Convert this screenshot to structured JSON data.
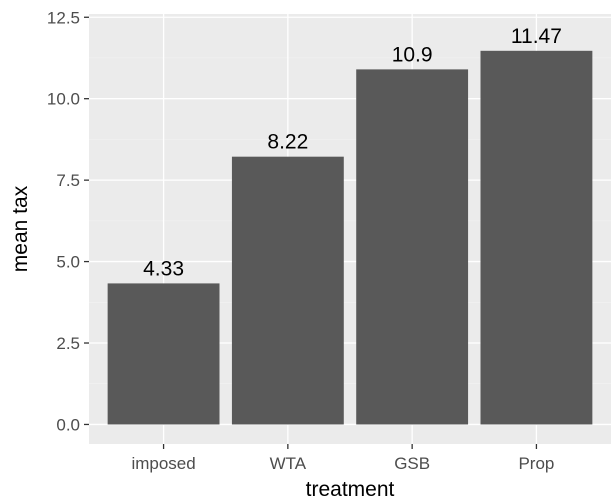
{
  "chart_data": {
    "type": "bar",
    "categories": [
      "imposed",
      "WTA",
      "GSB",
      "Prop"
    ],
    "values": [
      4.33,
      8.22,
      10.9,
      11.47
    ],
    "data_labels": [
      "4.33",
      "8.22",
      "10.9",
      "11.47"
    ],
    "title": "",
    "xlabel": "treatment",
    "ylabel": "mean tax",
    "ylim": [
      -0.6,
      12.6
    ],
    "yticks": [
      0,
      2.5,
      5,
      7.5,
      10,
      12.5
    ],
    "ytick_labels": [
      "0.0",
      "2.5",
      "5.0",
      "7.5",
      "10.0",
      "12.5"
    ],
    "grid": true,
    "legend": "none",
    "colors": {
      "bar": "#595959",
      "panel": "#ebebeb",
      "grid_major": "#ffffff",
      "grid_minor": "#f2f2f2"
    }
  }
}
